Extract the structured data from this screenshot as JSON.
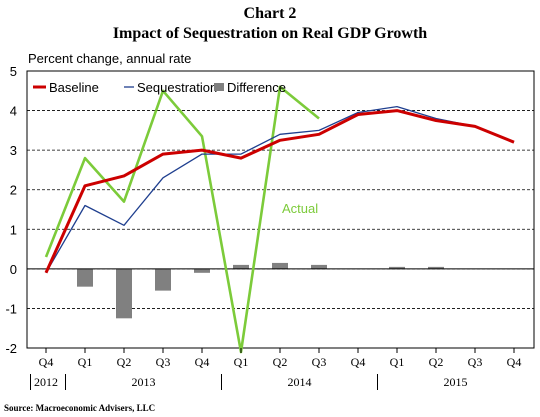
{
  "chart_data": {
    "type": "line",
    "title": "Chart 2",
    "subtitle": "Impact of Sequestration on Real GDP Growth",
    "ylabel": "Percent change, annual rate",
    "ylim": [
      -2,
      5
    ],
    "yticks": [
      "-2",
      "-1",
      "0",
      "1",
      "2",
      "3",
      "4",
      "5"
    ],
    "categories": [
      "Q4",
      "Q1",
      "Q2",
      "Q3",
      "Q4",
      "Q1",
      "Q2",
      "Q3",
      "Q4",
      "Q1",
      "Q2",
      "Q3",
      "Q4"
    ],
    "years": [
      {
        "label": "2012",
        "from": 0,
        "to": 0
      },
      {
        "label": "2013",
        "from": 1,
        "to": 4
      },
      {
        "label": "2014",
        "from": 5,
        "to": 8
      },
      {
        "label": "2015",
        "from": 9,
        "to": 12
      }
    ],
    "grid": true,
    "legend_position": "top-left",
    "series": [
      {
        "name": "Baseline",
        "kind": "line",
        "color": "#cc0000",
        "values": [
          -0.1,
          2.1,
          2.35,
          2.9,
          3.0,
          2.8,
          3.25,
          3.4,
          3.9,
          4.0,
          3.75,
          3.6,
          3.2
        ]
      },
      {
        "name": "Sequestration",
        "kind": "line",
        "color": "#1f3f8f",
        "values": [
          -0.1,
          1.6,
          1.1,
          2.3,
          2.9,
          2.9,
          3.4,
          3.5,
          3.95,
          4.1,
          3.8,
          3.6,
          3.2
        ]
      },
      {
        "name": "Difference",
        "kind": "bar",
        "color": "#808080",
        "values": [
          null,
          -0.45,
          -1.25,
          -0.55,
          -0.1,
          0.1,
          0.15,
          0.1,
          null,
          0.05,
          0.05,
          null,
          null
        ]
      },
      {
        "name": "Actual",
        "kind": "line",
        "color": "#7ccb3a",
        "values": [
          0.3,
          2.8,
          1.7,
          4.5,
          3.35,
          -2.1,
          4.6,
          3.8,
          null,
          null,
          null,
          null,
          null
        ]
      }
    ],
    "annotations": [
      {
        "text": "Actual",
        "color": "#7ccb3a"
      }
    ],
    "source": "Source: Macroeconomic Advisers, LLC"
  }
}
